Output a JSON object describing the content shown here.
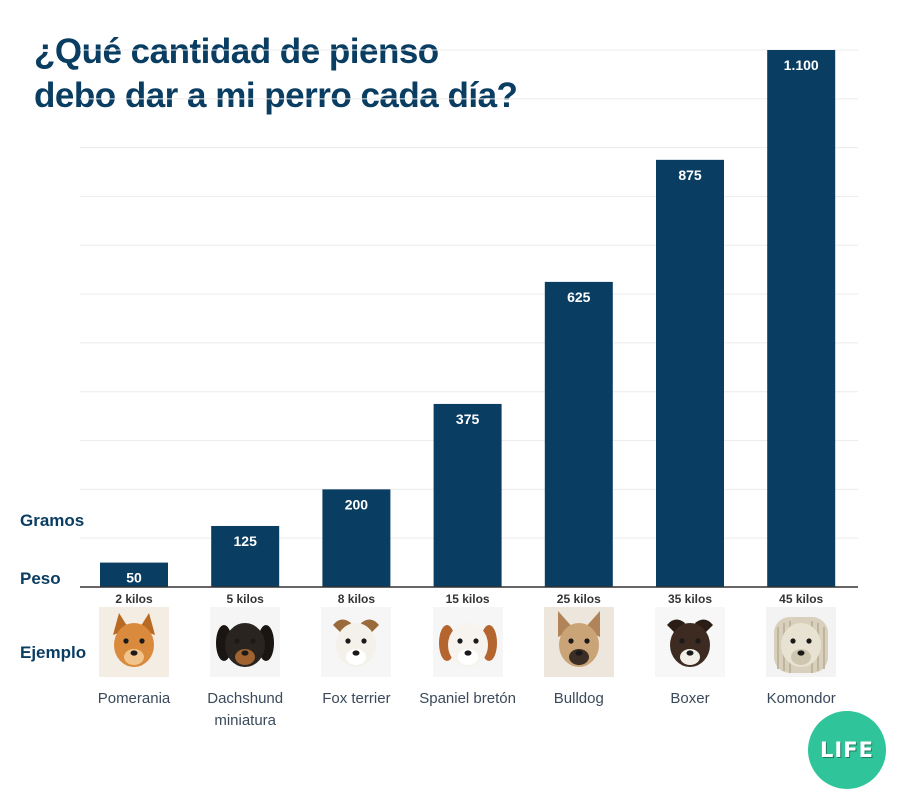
{
  "title": {
    "line1": "¿Qué cantidad de pienso",
    "line2": "debo dar a mi perro cada día?"
  },
  "row_labels": {
    "grams": "Gramos",
    "weight": "Peso",
    "example": "Ejemplo"
  },
  "badge": {
    "text": "LIFE"
  },
  "colors": {
    "bar": "#0a3d62",
    "title": "#0a3d62",
    "badge": "#2fc49a"
  },
  "chart_data": {
    "type": "bar",
    "title": "¿Qué cantidad de pienso debo dar a mi perro cada día?",
    "ylabel": "Gramos",
    "xlabel": "Peso",
    "categories": [
      "Pomerania",
      "Dachshund miniatura",
      "Fox terrier",
      "Spaniel bretón",
      "Bulldog",
      "Boxer",
      "Komondor"
    ],
    "weights": [
      "2 kilos",
      "5 kilos",
      "8 kilos",
      "15 kilos",
      "25 kilos",
      "35 kilos",
      "45 kilos"
    ],
    "values": [
      50,
      125,
      200,
      375,
      625,
      875,
      1100
    ],
    "value_labels": [
      "50",
      "125",
      "200",
      "375",
      "625",
      "875",
      "1.100"
    ],
    "ylim": [
      0,
      1100
    ],
    "grid": true
  },
  "breeds": [
    {
      "name_line1": "Pomerania",
      "name_line2": "",
      "icon": "pomeranian-dog-icon"
    },
    {
      "name_line1": "Dachshund",
      "name_line2": "miniatura",
      "icon": "dachshund-dog-icon"
    },
    {
      "name_line1": "Fox terrier",
      "name_line2": "",
      "icon": "fox-terrier-dog-icon"
    },
    {
      "name_line1": "Spaniel bretón",
      "name_line2": "",
      "icon": "spaniel-dog-icon"
    },
    {
      "name_line1": "Bulldog",
      "name_line2": "",
      "icon": "bulldog-dog-icon"
    },
    {
      "name_line1": "Boxer",
      "name_line2": "",
      "icon": "boxer-dog-icon"
    },
    {
      "name_line1": "Komondor",
      "name_line2": "",
      "icon": "komondor-dog-icon"
    }
  ]
}
